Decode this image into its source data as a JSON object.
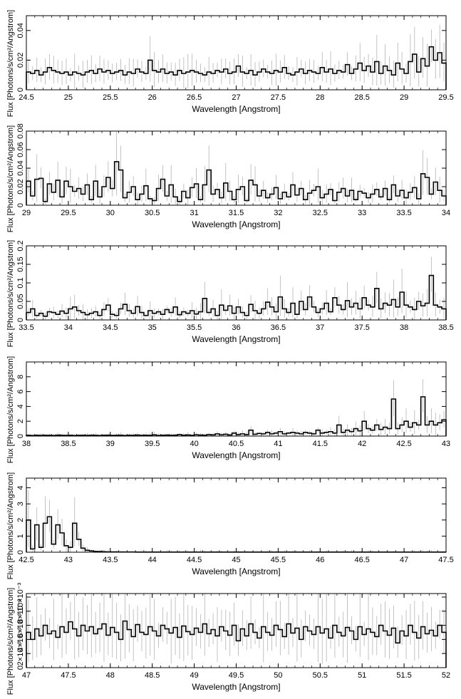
{
  "chart_data": [
    {
      "type": "histogram",
      "xlabel": "Wavelength [Angstrom]",
      "ylabel": "Flux [Photons/s/cm²/Angstrom]",
      "xlim": [
        24.5,
        29.5
      ],
      "ylim": [
        0,
        0.05
      ],
      "xticks": [
        24.5,
        25,
        25.5,
        26,
        26.5,
        27,
        27.5,
        28,
        28.5,
        29,
        29.5
      ],
      "xtick_labels": [
        "24.5",
        "25",
        "25.5",
        "26",
        "26.5",
        "27",
        "27.5",
        "28",
        "28.5",
        "29",
        "29.5"
      ],
      "yticks": [
        0,
        0.02,
        0.04
      ],
      "ytick_labels": [
        "0",
        "0.02",
        "0.04"
      ],
      "bin_width": 0.05,
      "flux": [
        0.012,
        0.011,
        0.013,
        0.01,
        0.012,
        0.015,
        0.013,
        0.012,
        0.011,
        0.012,
        0.01,
        0.012,
        0.011,
        0.01,
        0.012,
        0.013,
        0.011,
        0.014,
        0.012,
        0.013,
        0.011,
        0.012,
        0.013,
        0.01,
        0.012,
        0.011,
        0.014,
        0.012,
        0.011,
        0.02,
        0.013,
        0.012,
        0.014,
        0.011,
        0.012,
        0.01,
        0.013,
        0.011,
        0.012,
        0.013,
        0.012,
        0.011,
        0.01,
        0.012,
        0.011,
        0.013,
        0.012,
        0.014,
        0.011,
        0.012,
        0.016,
        0.012,
        0.011,
        0.013,
        0.01,
        0.012,
        0.014,
        0.012,
        0.011,
        0.013,
        0.012,
        0.015,
        0.011,
        0.01,
        0.012,
        0.014,
        0.011,
        0.013,
        0.012,
        0.011,
        0.015,
        0.012,
        0.014,
        0.011,
        0.013,
        0.012,
        0.017,
        0.011,
        0.014,
        0.018,
        0.013,
        0.016,
        0.012,
        0.019,
        0.011,
        0.016,
        0.013,
        0.01,
        0.018,
        0.014,
        0.011,
        0.019,
        0.024,
        0.012,
        0.021,
        0.016,
        0.029,
        0.02,
        0.025,
        0.018
      ],
      "errors": true,
      "bins_note": ""
    },
    {
      "type": "histogram",
      "xlabel": "Wavelength [Angstrom]",
      "ylabel": "Flux [Photons/s/cm²/Angstrom]",
      "xlim": [
        29,
        34
      ],
      "ylim": [
        0,
        0.08
      ],
      "xticks": [
        29,
        29.5,
        30,
        30.5,
        31,
        31.5,
        32,
        32.5,
        33,
        33.5,
        34
      ],
      "xtick_labels": [
        "29",
        "29.5",
        "30",
        "30.5",
        "31",
        "31.5",
        "32",
        "32.5",
        "33",
        "33.5",
        "34"
      ],
      "yticks": [
        0,
        0.02,
        0.04,
        0.06,
        0.08
      ],
      "ytick_labels": [
        "0",
        "0.02",
        "0.04",
        "0.06",
        "0.08"
      ],
      "bin_width": 0.05,
      "flux": [
        0.026,
        0.01,
        0.028,
        0.029,
        0.004,
        0.023,
        0.014,
        0.027,
        0.009,
        0.026,
        0.02,
        0.015,
        0.018,
        0.012,
        0.022,
        0.006,
        0.026,
        0.009,
        0.02,
        0.03,
        0.018,
        0.047,
        0.038,
        0.008,
        0.014,
        0.02,
        0.006,
        0.012,
        0.021,
        0.007,
        0.005,
        0.018,
        0.028,
        0.01,
        0.022,
        0.009,
        0.004,
        0.015,
        0.008,
        0.019,
        0.023,
        0.006,
        0.022,
        0.038,
        0.012,
        0.017,
        0.008,
        0.024,
        0.015,
        0.006,
        0.017,
        0.02,
        0.005,
        0.027,
        0.022,
        0.01,
        0.016,
        0.008,
        0.012,
        0.019,
        0.007,
        0.014,
        0.009,
        0.022,
        0.011,
        0.018,
        0.006,
        0.013,
        0.016,
        0.02,
        0.008,
        0.012,
        0.017,
        0.005,
        0.014,
        0.018,
        0.01,
        0.016,
        0.006,
        0.015,
        0.013,
        0.008,
        0.012,
        0.017,
        0.009,
        0.018,
        0.006,
        0.022,
        0.01,
        0.016,
        0.008,
        0.014,
        0.019,
        0.007,
        0.034,
        0.03,
        0.012,
        0.025,
        0.016,
        0.01
      ],
      "errors": true
    },
    {
      "type": "histogram",
      "xlabel": "Wavelength [Angstrom]",
      "ylabel": "Flux [Photons/s/cm²/Angstrom]",
      "xlim": [
        33.5,
        38.5
      ],
      "ylim": [
        0,
        0.2
      ],
      "xticks": [
        33.5,
        34,
        34.5,
        35,
        35.5,
        36,
        36.5,
        37,
        37.5,
        38,
        38.5
      ],
      "xtick_labels": [
        "33.5",
        "34",
        "34.5",
        "35",
        "35.5",
        "36",
        "36.5",
        "37",
        "37.5",
        "38",
        "38.5"
      ],
      "yticks": [
        0,
        0.05,
        0.1,
        0.15,
        0.2
      ],
      "ytick_labels": [
        "0",
        "0.05",
        "0.1",
        "0.15",
        "0.2"
      ],
      "bin_width": 0.05,
      "flux": [
        0.02,
        0.03,
        0.012,
        0.018,
        0.01,
        0.022,
        0.02,
        0.015,
        0.024,
        0.018,
        0.03,
        0.035,
        0.025,
        0.02,
        0.014,
        0.018,
        0.022,
        0.012,
        0.028,
        0.04,
        0.015,
        0.012,
        0.03,
        0.042,
        0.025,
        0.018,
        0.036,
        0.02,
        0.012,
        0.025,
        0.018,
        0.022,
        0.015,
        0.028,
        0.02,
        0.035,
        0.014,
        0.022,
        0.018,
        0.025,
        0.016,
        0.022,
        0.058,
        0.02,
        0.03,
        0.012,
        0.04,
        0.026,
        0.038,
        0.018,
        0.035,
        0.02,
        0.012,
        0.042,
        0.025,
        0.018,
        0.03,
        0.048,
        0.035,
        0.022,
        0.062,
        0.03,
        0.02,
        0.045,
        0.015,
        0.05,
        0.028,
        0.062,
        0.035,
        0.02,
        0.03,
        0.045,
        0.022,
        0.06,
        0.04,
        0.028,
        0.052,
        0.035,
        0.045,
        0.03,
        0.06,
        0.04,
        0.035,
        0.085,
        0.03,
        0.045,
        0.04,
        0.055,
        0.035,
        0.075,
        0.04,
        0.035,
        0.028,
        0.05,
        0.038,
        0.045,
        0.12,
        0.04,
        0.035,
        0.03
      ],
      "errors": true
    },
    {
      "type": "histogram",
      "xlabel": "Wavelength [Angstrom]",
      "ylabel": "Flux [Photons/s/cm²/Angstrom]",
      "xlim": [
        38,
        43
      ],
      "ylim": [
        0,
        10
      ],
      "xticks": [
        38,
        38.5,
        39,
        39.5,
        40,
        40.5,
        41,
        41.5,
        42,
        42.5,
        43
      ],
      "xtick_labels": [
        "38",
        "38.5",
        "39",
        "39.5",
        "40",
        "40.5",
        "41",
        "41.5",
        "42",
        "42.5",
        "43"
      ],
      "yticks": [
        0,
        2,
        4,
        6,
        8
      ],
      "ytick_labels": [
        "0",
        "2",
        "4",
        "6",
        "8"
      ],
      "bin_width": 0.05,
      "flux": [
        0.1,
        0.08,
        0.12,
        0.09,
        0.11,
        0.1,
        0.08,
        0.13,
        0.1,
        0.09,
        0.12,
        0.08,
        0.1,
        0.11,
        0.09,
        0.12,
        0.1,
        0.08,
        0.11,
        0.13,
        0.09,
        0.1,
        0.12,
        0.08,
        0.11,
        0.1,
        0.14,
        0.09,
        0.12,
        0.1,
        0.16,
        0.08,
        0.12,
        0.14,
        0.1,
        0.13,
        0.2,
        0.12,
        0.15,
        0.1,
        0.18,
        0.14,
        0.12,
        0.2,
        0.16,
        0.3,
        0.18,
        0.25,
        0.15,
        0.4,
        0.2,
        0.3,
        0.2,
        0.8,
        0.25,
        0.35,
        0.3,
        0.5,
        0.3,
        0.4,
        0.6,
        0.3,
        0.4,
        0.5,
        0.4,
        0.3,
        0.5,
        0.4,
        0.3,
        0.8,
        0.4,
        0.5,
        0.6,
        0.4,
        1.5,
        0.5,
        0.8,
        0.6,
        1.0,
        0.7,
        2.0,
        1.0,
        0.8,
        1.5,
        0.9,
        1.2,
        1.0,
        5.0,
        1.0,
        1.5,
        2.0,
        1.2,
        1.8,
        1.5,
        5.3,
        1.5,
        2.0,
        1.5,
        1.8,
        2.2
      ],
      "errors": true
    },
    {
      "type": "histogram",
      "xlabel": "Wavelength [Angstrom]",
      "ylabel": "Flux [Photons/s/cm²/Angstrom]",
      "xlim": [
        42.5,
        47.5
      ],
      "ylim": [
        0,
        4.6
      ],
      "xticks": [
        42.5,
        43,
        43.5,
        44,
        44.5,
        45,
        45.5,
        46,
        46.5,
        47,
        47.5
      ],
      "xtick_labels": [
        "42.5",
        "43",
        "43.5",
        "44",
        "44.5",
        "45",
        "45.5",
        "46",
        "46.5",
        "47",
        "47.5"
      ],
      "yticks": [
        0,
        1,
        2,
        3,
        4
      ],
      "ytick_labels": [
        "0",
        "1",
        "2",
        "3",
        "4"
      ],
      "bin_width": 0.05,
      "flux": [
        2.0,
        0.2,
        1.7,
        0.3,
        1.8,
        2.2,
        0.5,
        1.7,
        1.2,
        0.4,
        0.3,
        1.8,
        0.8,
        0.25,
        0.12,
        0.08,
        0.05,
        0.04,
        0.03,
        0.02,
        0.02,
        0.02,
        0.015,
        0.015,
        0.012,
        0.012,
        0.01,
        0.01,
        0.01,
        0.01,
        0.01,
        0.01,
        0.01,
        0.01,
        0.01,
        0.01,
        0.01,
        0.01,
        0.01,
        0.01,
        0.01,
        0.01,
        0.01,
        0.01,
        0.01,
        0.01,
        0.01,
        0.01,
        0.01,
        0.01,
        0.01,
        0.01,
        0.01,
        0.01,
        0.01,
        0.01,
        0.01,
        0.01,
        0.01,
        0.01,
        0.01,
        0.01,
        0.01,
        0.01,
        0.01,
        0.01,
        0.01,
        0.01,
        0.01,
        0.01,
        0.01,
        0.01,
        0.01,
        0.01,
        0.01,
        0.01,
        0.01,
        0.01,
        0.01,
        0.01,
        0.01,
        0.01,
        0.01,
        0.01,
        0.01,
        0.01,
        0.01,
        0.01,
        0.01,
        0.01,
        0.01,
        0.01,
        0.01,
        0.01,
        0.01,
        0.01,
        0.01,
        0.01,
        0.01,
        0.01
      ],
      "errors": true
    },
    {
      "type": "histogram",
      "xlabel": "Wavelength [Angstrom]",
      "ylabel": "Flux [Photons/s/cm²/Angstrom]",
      "xlim": [
        47,
        52
      ],
      "ylim": [
        0,
        0.0105
      ],
      "xticks": [
        47,
        47.5,
        48,
        48.5,
        49,
        49.5,
        50,
        50.5,
        51,
        51.5,
        52
      ],
      "xtick_labels": [
        "47",
        "47.5",
        "48",
        "48.5",
        "49",
        "49.5",
        "50",
        "50.5",
        "51",
        "51.5",
        "52"
      ],
      "yticks": [
        0,
        0.002,
        0.004,
        0.006,
        0.008,
        0.01
      ],
      "ytick_labels": [
        "0",
        "2×10⁻³",
        "4×10⁻³",
        "6×10⁻³",
        "8×10⁻³",
        "10×10⁻³"
      ],
      "bin_width": 0.05,
      "flux": [
        0.005,
        0.004,
        0.0055,
        0.0045,
        0.006,
        0.0048,
        0.0052,
        0.0043,
        0.0058,
        0.005,
        0.0065,
        0.0055,
        0.0045,
        0.006,
        0.0052,
        0.0058,
        0.0048,
        0.0055,
        0.0062,
        0.0046,
        0.0057,
        0.005,
        0.004,
        0.0066,
        0.0054,
        0.0044,
        0.0061,
        0.005,
        0.0047,
        0.0058,
        0.0052,
        0.0045,
        0.006,
        0.0055,
        0.0049,
        0.0057,
        0.0043,
        0.0059,
        0.0051,
        0.0047,
        0.0056,
        0.005,
        0.0062,
        0.0048,
        0.0054,
        0.0045,
        0.0058,
        0.0052,
        0.0046,
        0.006,
        0.0038,
        0.0055,
        0.0045,
        0.0062,
        0.005,
        0.0042,
        0.0058,
        0.005,
        0.0046,
        0.006,
        0.0054,
        0.0044,
        0.0062,
        0.0049,
        0.0056,
        0.004,
        0.0058,
        0.0052,
        0.0047,
        0.0058,
        0.0049,
        0.0055,
        0.0042,
        0.006,
        0.005,
        0.0045,
        0.0057,
        0.0052,
        0.004,
        0.0058,
        0.0047,
        0.0055,
        0.005,
        0.0044,
        0.006,
        0.0052,
        0.0046,
        0.0056,
        0.0035,
        0.0052,
        0.0045,
        0.006,
        0.005,
        0.0042,
        0.0058,
        0.0048,
        0.0053,
        0.0045,
        0.006,
        0.005
      ],
      "errors": true
    }
  ]
}
